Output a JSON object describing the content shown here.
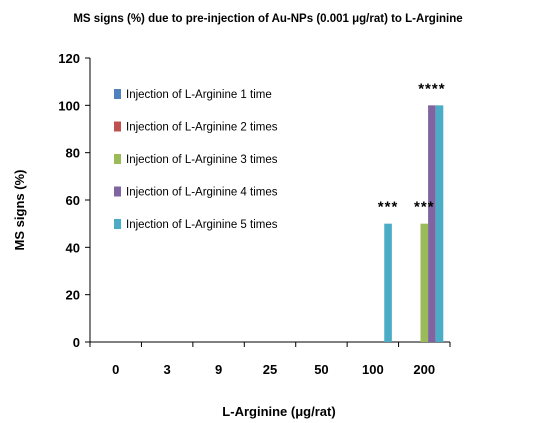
{
  "chart_data": {
    "type": "bar",
    "title": "MS signs  (%) due to pre-injection of  Au-NPs (0.001 μg/rat) to L-Arginine",
    "xlabel": "L-Arginine (μg/rat)",
    "ylabel": "MS signs  (%)",
    "ylim": [
      0,
      120
    ],
    "yticks": [
      0,
      20,
      40,
      60,
      80,
      100,
      120
    ],
    "categories": [
      "0",
      "3",
      "9",
      "25",
      "50",
      "100",
      "200"
    ],
    "legend_position": "top-left inside",
    "grid": false,
    "series": [
      {
        "name": "Injection of L-Arginine 1 time",
        "color": "#4f81bd",
        "values": [
          0,
          0,
          0,
          0,
          0,
          0,
          0
        ]
      },
      {
        "name": "Injection of L-Arginine 2 times",
        "color": "#c0504d",
        "values": [
          0,
          0,
          0,
          0,
          0,
          0,
          0
        ]
      },
      {
        "name": "Injection of L-Arginine 3 times",
        "color": "#9bbb59",
        "values": [
          0,
          0,
          0,
          0,
          0,
          0,
          50
        ]
      },
      {
        "name": "Injection of L-Arginine 4 times",
        "color": "#8064a2",
        "values": [
          0,
          0,
          0,
          0,
          0,
          0,
          100
        ]
      },
      {
        "name": "Injection of L-Arginine 5 times",
        "color": "#4bacc6",
        "values": [
          0,
          0,
          0,
          0,
          0,
          50,
          100
        ]
      }
    ],
    "annotations": [
      {
        "text": "***",
        "category": "100",
        "series": 4
      },
      {
        "text": "***",
        "category": "200",
        "series": 2
      },
      {
        "text": "****",
        "category": "200",
        "series": 3
      }
    ]
  }
}
